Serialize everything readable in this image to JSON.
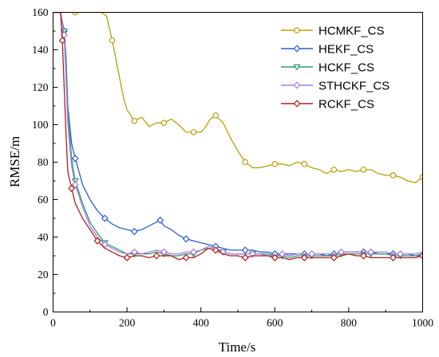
{
  "chart_data": {
    "type": "line",
    "xlabel": "Time/s",
    "ylabel": "RMSE/m",
    "xlim": [
      0,
      1000
    ],
    "ylim": [
      0,
      160
    ],
    "xticks": [
      0,
      200,
      400,
      600,
      800,
      1000
    ],
    "yticks": [
      0,
      20,
      40,
      60,
      80,
      100,
      120,
      140,
      160
    ],
    "grid": false,
    "legend_position": "top-right",
    "series": [
      {
        "name": "HCMKF_CS",
        "color": "#b8a008",
        "marker": "circle",
        "points": [
          [
            0,
            160
          ],
          [
            20,
            160
          ],
          [
            60,
            160
          ],
          [
            100,
            160
          ],
          [
            130,
            160
          ],
          [
            145,
            158
          ],
          [
            160,
            145
          ],
          [
            175,
            130
          ],
          [
            190,
            115
          ],
          [
            200,
            108
          ],
          [
            220,
            102
          ],
          [
            240,
            104
          ],
          [
            260,
            99
          ],
          [
            280,
            101
          ],
          [
            300,
            101
          ],
          [
            320,
            103
          ],
          [
            340,
            100
          ],
          [
            360,
            96
          ],
          [
            380,
            96
          ],
          [
            400,
            96
          ],
          [
            410,
            98
          ],
          [
            425,
            103
          ],
          [
            440,
            105
          ],
          [
            460,
            101
          ],
          [
            480,
            93
          ],
          [
            500,
            86
          ],
          [
            520,
            80
          ],
          [
            540,
            77
          ],
          [
            560,
            77
          ],
          [
            580,
            78
          ],
          [
            600,
            79
          ],
          [
            620,
            79
          ],
          [
            640,
            78
          ],
          [
            660,
            80
          ],
          [
            680,
            79
          ],
          [
            700,
            77
          ],
          [
            720,
            76
          ],
          [
            740,
            74
          ],
          [
            760,
            76
          ],
          [
            780,
            75
          ],
          [
            800,
            76
          ],
          [
            820,
            75
          ],
          [
            840,
            76
          ],
          [
            860,
            76
          ],
          [
            880,
            74
          ],
          [
            900,
            73
          ],
          [
            920,
            73
          ],
          [
            940,
            72
          ],
          [
            960,
            70
          ],
          [
            980,
            69
          ],
          [
            1000,
            72
          ]
        ]
      },
      {
        "name": "HEKF_CS",
        "color": "#2c5fcf",
        "marker": "diamond",
        "points": [
          [
            0,
            160
          ],
          [
            20,
            160
          ],
          [
            30,
            150
          ],
          [
            35,
            136
          ],
          [
            40,
            110
          ],
          [
            50,
            90
          ],
          [
            60,
            82
          ],
          [
            80,
            68
          ],
          [
            100,
            60
          ],
          [
            120,
            54
          ],
          [
            140,
            50
          ],
          [
            160,
            47
          ],
          [
            180,
            45
          ],
          [
            200,
            44
          ],
          [
            220,
            43
          ],
          [
            240,
            44
          ],
          [
            260,
            46
          ],
          [
            280,
            48
          ],
          [
            290,
            49
          ],
          [
            300,
            46
          ],
          [
            320,
            44
          ],
          [
            340,
            41
          ],
          [
            360,
            39
          ],
          [
            380,
            38
          ],
          [
            400,
            37
          ],
          [
            420,
            36
          ],
          [
            440,
            35
          ],
          [
            460,
            34
          ],
          [
            480,
            33
          ],
          [
            500,
            33
          ],
          [
            520,
            33
          ],
          [
            540,
            33
          ],
          [
            560,
            32
          ],
          [
            580,
            32
          ],
          [
            600,
            31
          ],
          [
            620,
            31
          ],
          [
            640,
            31
          ],
          [
            660,
            31
          ],
          [
            680,
            31
          ],
          [
            700,
            31
          ],
          [
            720,
            31
          ],
          [
            740,
            30
          ],
          [
            760,
            31
          ],
          [
            780,
            32
          ],
          [
            800,
            32
          ],
          [
            820,
            32
          ],
          [
            840,
            32
          ],
          [
            860,
            32
          ],
          [
            880,
            31
          ],
          [
            900,
            31
          ],
          [
            920,
            31
          ],
          [
            940,
            31
          ],
          [
            960,
            31
          ],
          [
            980,
            30
          ],
          [
            1000,
            30
          ]
        ]
      },
      {
        "name": "HCKF_CS",
        "color": "#2e9b6e",
        "marker": "triangle-down",
        "points": [
          [
            0,
            160
          ],
          [
            20,
            160
          ],
          [
            30,
            150
          ],
          [
            35,
            135
          ],
          [
            40,
            108
          ],
          [
            50,
            82
          ],
          [
            60,
            70
          ],
          [
            80,
            58
          ],
          [
            100,
            48
          ],
          [
            120,
            42
          ],
          [
            140,
            37
          ],
          [
            160,
            35
          ],
          [
            180,
            33
          ],
          [
            200,
            31
          ],
          [
            220,
            31
          ],
          [
            240,
            31
          ],
          [
            260,
            31
          ],
          [
            280,
            32
          ],
          [
            300,
            31
          ],
          [
            320,
            30
          ],
          [
            340,
            30
          ],
          [
            360,
            31
          ],
          [
            380,
            31
          ],
          [
            400,
            33
          ],
          [
            420,
            34
          ],
          [
            440,
            33
          ],
          [
            460,
            32
          ],
          [
            480,
            31
          ],
          [
            500,
            31
          ],
          [
            520,
            31
          ],
          [
            540,
            31
          ],
          [
            560,
            31
          ],
          [
            580,
            31
          ],
          [
            600,
            30
          ],
          [
            620,
            30
          ],
          [
            640,
            29
          ],
          [
            660,
            30
          ],
          [
            680,
            30
          ],
          [
            700,
            30
          ],
          [
            720,
            30
          ],
          [
            740,
            30
          ],
          [
            760,
            30
          ],
          [
            780,
            31
          ],
          [
            800,
            31
          ],
          [
            820,
            31
          ],
          [
            840,
            31
          ],
          [
            860,
            31
          ],
          [
            880,
            31
          ],
          [
            900,
            31
          ],
          [
            920,
            30
          ],
          [
            940,
            30
          ],
          [
            960,
            30
          ],
          [
            980,
            30
          ],
          [
            1000,
            31
          ]
        ]
      },
      {
        "name": "STHCKF_CS",
        "color": "#a57be0",
        "marker": "diamond",
        "points": [
          [
            0,
            160
          ],
          [
            20,
            160
          ],
          [
            30,
            148
          ],
          [
            35,
            125
          ],
          [
            40,
            100
          ],
          [
            50,
            78
          ],
          [
            60,
            68
          ],
          [
            80,
            56
          ],
          [
            100,
            46
          ],
          [
            120,
            40
          ],
          [
            140,
            36
          ],
          [
            160,
            34
          ],
          [
            180,
            32
          ],
          [
            200,
            31
          ],
          [
            220,
            32
          ],
          [
            240,
            31
          ],
          [
            260,
            32
          ],
          [
            280,
            33
          ],
          [
            300,
            32
          ],
          [
            320,
            31
          ],
          [
            340,
            31
          ],
          [
            360,
            32
          ],
          [
            380,
            32
          ],
          [
            400,
            33
          ],
          [
            420,
            35
          ],
          [
            440,
            34
          ],
          [
            460,
            32
          ],
          [
            480,
            31
          ],
          [
            500,
            31
          ],
          [
            520,
            31
          ],
          [
            540,
            31
          ],
          [
            560,
            31
          ],
          [
            580,
            30
          ],
          [
            600,
            30
          ],
          [
            620,
            31
          ],
          [
            640,
            30
          ],
          [
            660,
            31
          ],
          [
            680,
            31
          ],
          [
            700,
            31
          ],
          [
            720,
            31
          ],
          [
            740,
            31
          ],
          [
            760,
            31
          ],
          [
            780,
            32
          ],
          [
            800,
            32
          ],
          [
            820,
            32
          ],
          [
            840,
            32
          ],
          [
            860,
            32
          ],
          [
            880,
            32
          ],
          [
            900,
            32
          ],
          [
            920,
            31
          ],
          [
            940,
            31
          ],
          [
            960,
            31
          ],
          [
            980,
            31
          ],
          [
            1000,
            32
          ]
        ]
      },
      {
        "name": "RCKF_CS",
        "color": "#b01e1e",
        "marker": "diamond",
        "points": [
          [
            0,
            160
          ],
          [
            20,
            160
          ],
          [
            25,
            145
          ],
          [
            30,
            120
          ],
          [
            35,
            95
          ],
          [
            40,
            75
          ],
          [
            50,
            66
          ],
          [
            60,
            58
          ],
          [
            80,
            50
          ],
          [
            100,
            44
          ],
          [
            120,
            38
          ],
          [
            140,
            34
          ],
          [
            160,
            32
          ],
          [
            180,
            30
          ],
          [
            200,
            29
          ],
          [
            220,
            30
          ],
          [
            240,
            30
          ],
          [
            260,
            29
          ],
          [
            280,
            30
          ],
          [
            300,
            30
          ],
          [
            320,
            30
          ],
          [
            340,
            28
          ],
          [
            360,
            29
          ],
          [
            380,
            29
          ],
          [
            400,
            31
          ],
          [
            420,
            34
          ],
          [
            440,
            33
          ],
          [
            460,
            31
          ],
          [
            480,
            30
          ],
          [
            500,
            30
          ],
          [
            520,
            29
          ],
          [
            540,
            30
          ],
          [
            560,
            30
          ],
          [
            580,
            30
          ],
          [
            600,
            29
          ],
          [
            620,
            29
          ],
          [
            640,
            28
          ],
          [
            660,
            29
          ],
          [
            680,
            29
          ],
          [
            700,
            29
          ],
          [
            720,
            29
          ],
          [
            740,
            29
          ],
          [
            760,
            29
          ],
          [
            780,
            30
          ],
          [
            800,
            31
          ],
          [
            820,
            30
          ],
          [
            840,
            30
          ],
          [
            860,
            29
          ],
          [
            880,
            29
          ],
          [
            900,
            29
          ],
          [
            920,
            29
          ],
          [
            940,
            29
          ],
          [
            960,
            29
          ],
          [
            980,
            29
          ],
          [
            1000,
            30
          ]
        ]
      }
    ]
  }
}
